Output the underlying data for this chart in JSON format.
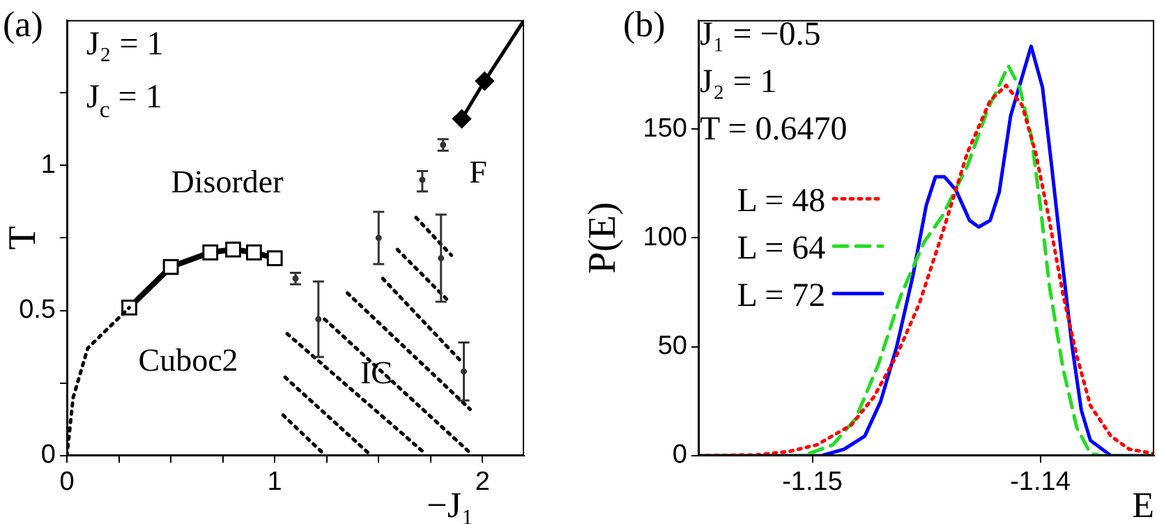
{
  "chart_data": [
    {
      "type": "line",
      "title": "(a)",
      "xlabel": "−J₁",
      "ylabel": "T",
      "annotations": [
        "J₂ = 1",
        "J$_{c}$ = 1",
        "Disorder",
        "Cuboc2",
        "IC",
        "F"
      ],
      "xlim": [
        0,
        2.2
      ],
      "ylim": [
        0,
        1.5
      ],
      "xticks": [
        0,
        {
          "value": 0.25,
          "label": null
        },
        {
          "value": 0.5,
          "label": null
        },
        {
          "value": 0.75,
          "label": null
        },
        1,
        {
          "value": 1.25,
          "label": null
        },
        {
          "value": 1.5,
          "label": null
        },
        {
          "value": 1.75,
          "label": null
        },
        2
      ],
      "yticks": [
        0,
        {
          "value": 0.25,
          "label": null
        },
        0.5,
        {
          "value": 0.75,
          "label": null
        },
        1,
        {
          "value": 1.25,
          "label": null
        }
      ],
      "series": [
        {
          "color": "#000000",
          "marker": "none",
          "line_style": "dotted",
          "x": [
            0,
            0.03,
            0.1,
            0.3
          ],
          "values": [
            0,
            0.2,
            0.37,
            0.51
          ]
        },
        {
          "color": "#000000",
          "marker": "square",
          "line_style": "solid",
          "x": [
            0.3,
            0.5,
            0.69,
            0.8,
            0.9,
            1.0
          ],
          "values": [
            0.51,
            0.65,
            0.7,
            0.71,
            0.7,
            0.68
          ]
        },
        {
          "color": "#000000",
          "marker": "none",
          "line_style": "solid",
          "x": [
            1.9,
            2.01,
            2.2
          ],
          "values": [
            1.16,
            1.29,
            1.5
          ]
        },
        {
          "type": "scatter",
          "color": "#000000",
          "marker": "diamond",
          "x": [
            1.9,
            2.01
          ],
          "values": [
            1.16,
            1.29
          ]
        },
        {
          "type": "scatter",
          "color": "#333333",
          "x": [
            1.1,
            1.21,
            1.5,
            1.71,
            1.8,
            1.81,
            1.91
          ],
          "values": [
            0.61,
            0.47,
            0.75,
            0.95,
            0.68,
            1.07,
            0.29
          ],
          "errors": [
            [
              0.59,
              0.63
            ],
            [
              0.34,
              0.6
            ],
            [
              0.66,
              0.84
            ],
            [
              0.91,
              0.98
            ],
            [
              0.53,
              0.83
            ],
            [
              1.05,
              1.09
            ],
            [
              0.19,
              0.39
            ]
          ]
        },
        {
          "type": "line",
          "color": "#000000",
          "marker": "none",
          "line_style": "dotted",
          "x": [
            1.04,
            1.23
          ],
          "values": [
            0.14,
            0.01
          ]
        },
        {
          "type": "line",
          "color": "#000000",
          "marker": "none",
          "line_style": "dotted",
          "x": [
            1.05,
            1.45
          ],
          "values": [
            0.27,
            0.01
          ]
        },
        {
          "type": "line",
          "color": "#000000",
          "marker": "none",
          "line_style": "dotted",
          "x": [
            1.06,
            1.72
          ],
          "values": [
            0.42,
            0.01
          ]
        },
        {
          "type": "line",
          "color": "#000000",
          "marker": "none",
          "line_style": "dotted",
          "x": [
            1.24,
            1.94
          ],
          "values": [
            0.47,
            0.01
          ]
        },
        {
          "type": "line",
          "color": "#000000",
          "marker": "none",
          "line_style": "dotted",
          "x": [
            1.35,
            1.94
          ],
          "values": [
            0.56,
            0.16
          ]
        },
        {
          "type": "line",
          "color": "#000000",
          "marker": "none",
          "line_style": "dotted",
          "x": [
            1.52,
            1.89
          ],
          "values": [
            0.61,
            0.33
          ]
        },
        {
          "type": "line",
          "color": "#000000",
          "marker": "none",
          "line_style": "dotted",
          "x": [
            1.59,
            1.84
          ],
          "values": [
            0.71,
            0.53
          ]
        },
        {
          "type": "line",
          "color": "#000000",
          "marker": "none",
          "line_style": "dotted",
          "x": [
            1.68,
            1.85
          ],
          "values": [
            0.82,
            0.69
          ]
        }
      ]
    },
    {
      "type": "line",
      "title": "(b)",
      "xlabel": "E",
      "ylabel": "P(E)",
      "annotations": [
        "J₁ = −0.5",
        "J₂ = 1",
        "T = 0.6470"
      ],
      "xlim": [
        -1.155,
        -1.135
      ],
      "ylim": [
        0,
        200
      ],
      "xticks": [
        -1.15,
        -1.14
      ],
      "yticks": [
        0,
        50,
        100,
        150
      ],
      "legend": "left",
      "series": [
        {
          "name": "L = 48",
          "color": "#ff0000",
          "marker": "none",
          "line_style": "dotted",
          "x": [
            -1.155,
            -1.1524,
            -1.151,
            -1.1498,
            -1.1483,
            -1.1473,
            -1.1463,
            -1.1453,
            -1.1443,
            -1.1432,
            -1.1422,
            -1.1415,
            -1.1408,
            -1.1402,
            -1.1396,
            -1.139,
            -1.1384,
            -1.1378,
            -1.1369,
            -1.1361,
            -1.135
          ],
          "values": [
            0,
            0.4,
            2,
            5,
            14,
            27,
            46,
            70,
            102,
            139,
            163,
            170,
            161,
            139,
            108,
            74,
            46,
            23,
            9,
            3,
            1
          ]
        },
        {
          "name": "L = 64",
          "color": "#22dd22",
          "marker": "none",
          "line_style": "dashed",
          "x": [
            -1.155,
            -1.1504,
            -1.1491,
            -1.1481,
            -1.1471,
            -1.1461,
            -1.1451,
            -1.1443,
            -1.1432,
            -1.1423,
            -1.1414,
            -1.1409,
            -1.1404,
            -1.14,
            -1.1396,
            -1.139,
            -1.1384,
            -1.1378,
            -1.1373,
            -1.135
          ],
          "values": [
            0,
            0,
            5,
            17,
            42,
            74,
            98,
            110,
            133,
            159,
            179,
            169,
            147,
            115,
            78,
            40,
            13,
            1,
            0,
            0
          ]
        },
        {
          "name": "L = 72",
          "color": "#0000ff",
          "marker": "none",
          "line_style": "solid",
          "x": [
            -1.155,
            -1.1496,
            -1.1486,
            -1.1477,
            -1.147,
            -1.1463,
            -1.1456,
            -1.145,
            -1.1446,
            -1.1442,
            -1.1437,
            -1.1431,
            -1.1427,
            -1.1422,
            -1.1418,
            -1.1413,
            -1.1404,
            -1.1399,
            -1.1395,
            -1.139,
            -1.1386,
            -1.1382,
            -1.1378,
            -1.1369,
            -1.135
          ],
          "values": [
            0,
            0,
            3,
            9,
            25,
            50,
            82,
            115,
            128,
            128,
            122,
            108,
            105,
            108,
            121,
            156,
            188,
            169,
            133,
            86,
            50,
            21,
            7,
            0,
            0
          ]
        }
      ]
    }
  ]
}
